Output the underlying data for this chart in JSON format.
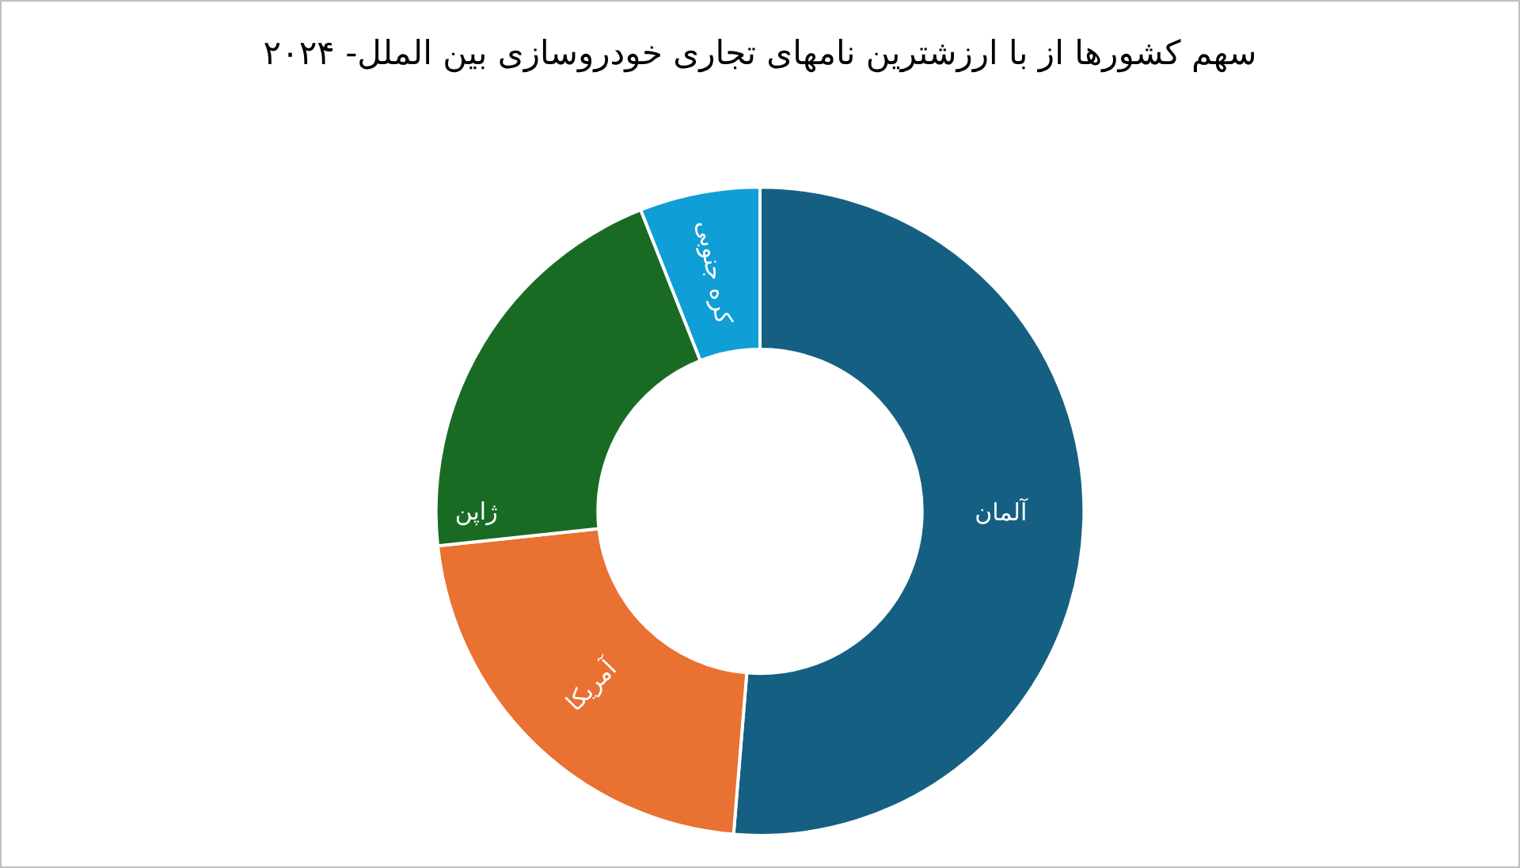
{
  "chart_data": {
    "type": "donut",
    "title": "سهم کشورها از با ارزشترین نامهای تجاری خودروسازی بین الملل- ۲۰۲۴",
    "categories": [
      "آلمان",
      "آمریکا",
      "ژاپن",
      "کره جنوبی"
    ],
    "values": [
      51.3,
      22,
      20.7,
      6
    ],
    "colors": [
      "#156082",
      "#e97132",
      "#196b24",
      "#0f9ed5"
    ],
    "legend": false
  }
}
